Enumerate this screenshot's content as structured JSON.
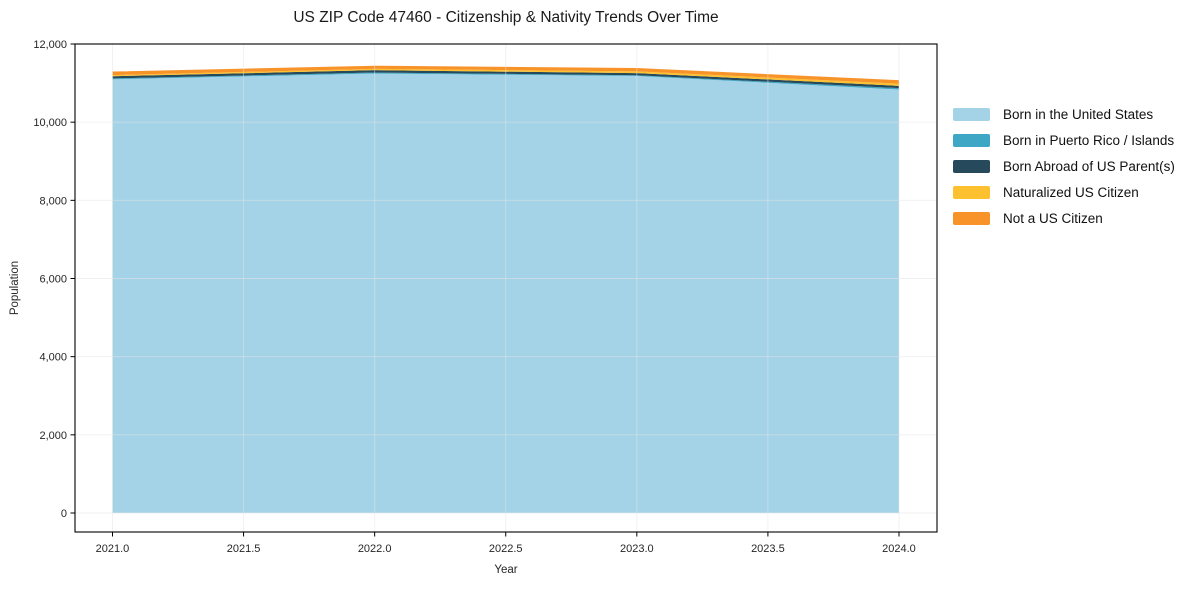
{
  "chart_data": {
    "type": "area",
    "stacked": true,
    "title": "US ZIP Code 47460 - Citizenship & Nativity Trends Over Time",
    "xlabel": "Year",
    "ylabel": "Population",
    "x": [
      2021,
      2022,
      2023,
      2024
    ],
    "series": [
      {
        "name": "Born in the United States",
        "color": "#A4D3E8",
        "values": [
          11095,
          11245,
          11180,
          10835
        ]
      },
      {
        "name": "Born in Puerto Rico / Islands",
        "color": "#3FA7C6",
        "values": [
          25,
          25,
          20,
          35
        ]
      },
      {
        "name": "Born Abroad of US Parent(s)",
        "color": "#27495C",
        "values": [
          55,
          60,
          55,
          60
        ]
      },
      {
        "name": "Naturalized US Citizen",
        "color": "#FDC02F",
        "values": [
          30,
          35,
          45,
          55
        ]
      },
      {
        "name": "Not a US Citizen",
        "color": "#F8932A",
        "values": [
          90,
          80,
          85,
          90
        ]
      }
    ],
    "x_ticks": [
      "2021.0",
      "2021.5",
      "2022.0",
      "2022.5",
      "2023.0",
      "2023.5",
      "2024.0"
    ],
    "y_ticks": [
      "0",
      "2,000",
      "4,000",
      "6,000",
      "8,000",
      "10,000",
      "12,000"
    ],
    "xlim": [
      2020.857,
      2024.145
    ],
    "ylim": [
      -486,
      12000
    ],
    "grid": true,
    "legend_position": "outside-right",
    "grid_color": "#e3e3e3",
    "spine_color": "#000000",
    "tick_label_color": "#262626"
  }
}
